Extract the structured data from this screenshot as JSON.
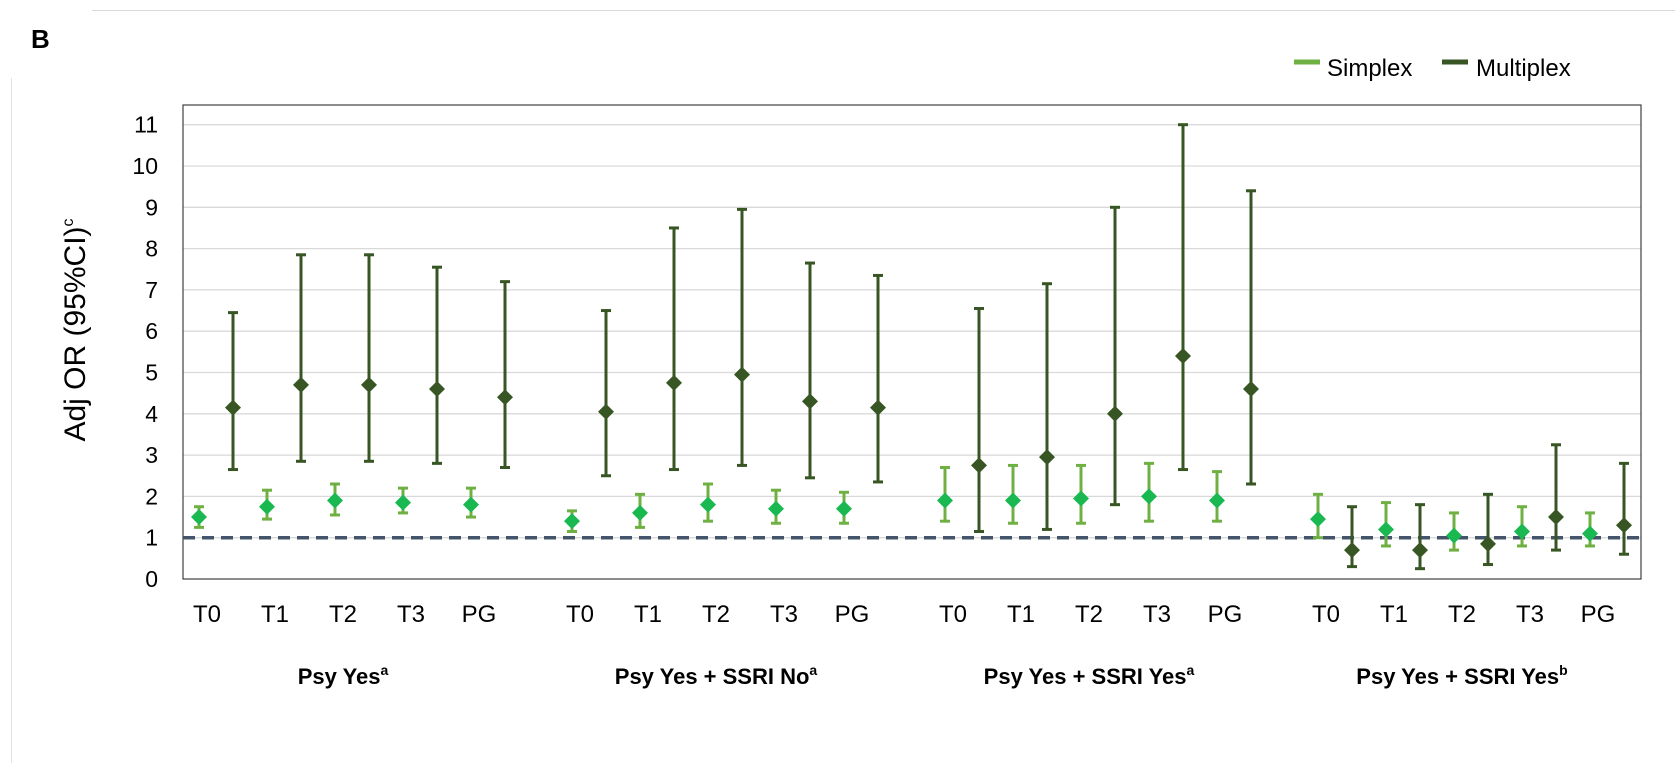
{
  "panel_label": "B",
  "colors": {
    "simplex_bar": "#6fb043",
    "simplex_marker": "#19b850",
    "multiplex": "#375623",
    "reference_line": "#44546a",
    "grid": "#d9d9d9",
    "frame": "#404040"
  },
  "chart_data": {
    "type": "scatter",
    "subtype": "point-with-error-bars",
    "title": "",
    "ylabel": "Adj OR (95%CI)",
    "ylabel_sup": "c",
    "ylim": [
      0,
      11
    ],
    "yticks": [
      0,
      1,
      2,
      3,
      4,
      5,
      6,
      7,
      8,
      9,
      10,
      11
    ],
    "grid": true,
    "reference_line": 1,
    "legend_position": "top-right",
    "groups": [
      {
        "label": "Psy Yes",
        "sup": "a"
      },
      {
        "label": "Psy Yes + SSRI No",
        "sup": "a"
      },
      {
        "label": "Psy Yes + SSRI Yes",
        "sup": "a"
      },
      {
        "label": "Psy Yes + SSRI Yes",
        "sup": "b"
      }
    ],
    "categories": [
      "T0",
      "T1",
      "T2",
      "T3",
      "PG"
    ],
    "series": [
      {
        "name": "Simplex",
        "values": [
          [
            {
              "est": 1.5,
              "lo": 1.25,
              "hi": 1.75
            },
            {
              "est": 1.75,
              "lo": 1.45,
              "hi": 2.15
            },
            {
              "est": 1.9,
              "lo": 1.55,
              "hi": 2.3
            },
            {
              "est": 1.85,
              "lo": 1.6,
              "hi": 2.2
            },
            {
              "est": 1.8,
              "lo": 1.5,
              "hi": 2.2
            }
          ],
          [
            {
              "est": 1.4,
              "lo": 1.15,
              "hi": 1.65
            },
            {
              "est": 1.6,
              "lo": 1.25,
              "hi": 2.05
            },
            {
              "est": 1.8,
              "lo": 1.4,
              "hi": 2.3
            },
            {
              "est": 1.7,
              "lo": 1.35,
              "hi": 2.15
            },
            {
              "est": 1.7,
              "lo": 1.35,
              "hi": 2.1
            }
          ],
          [
            {
              "est": 1.9,
              "lo": 1.4,
              "hi": 2.7
            },
            {
              "est": 1.9,
              "lo": 1.35,
              "hi": 2.75
            },
            {
              "est": 1.95,
              "lo": 1.35,
              "hi": 2.75
            },
            {
              "est": 2.0,
              "lo": 1.4,
              "hi": 2.8
            },
            {
              "est": 1.9,
              "lo": 1.4,
              "hi": 2.6
            }
          ],
          [
            {
              "est": 1.45,
              "lo": 1.0,
              "hi": 2.05
            },
            {
              "est": 1.2,
              "lo": 0.8,
              "hi": 1.85
            },
            {
              "est": 1.05,
              "lo": 0.7,
              "hi": 1.6
            },
            {
              "est": 1.15,
              "lo": 0.8,
              "hi": 1.75
            },
            {
              "est": 1.1,
              "lo": 0.8,
              "hi": 1.6
            }
          ]
        ]
      },
      {
        "name": "Multiplex",
        "values": [
          [
            {
              "est": 4.15,
              "lo": 2.65,
              "hi": 6.45
            },
            {
              "est": 4.7,
              "lo": 2.85,
              "hi": 7.85
            },
            {
              "est": 4.7,
              "lo": 2.85,
              "hi": 7.85
            },
            {
              "est": 4.6,
              "lo": 2.8,
              "hi": 7.55
            },
            {
              "est": 4.4,
              "lo": 2.7,
              "hi": 7.2
            }
          ],
          [
            {
              "est": 4.05,
              "lo": 2.5,
              "hi": 6.5
            },
            {
              "est": 4.75,
              "lo": 2.65,
              "hi": 8.5
            },
            {
              "est": 4.95,
              "lo": 2.75,
              "hi": 8.95
            },
            {
              "est": 4.3,
              "lo": 2.45,
              "hi": 7.65
            },
            {
              "est": 4.15,
              "lo": 2.35,
              "hi": 7.35
            }
          ],
          [
            {
              "est": 2.75,
              "lo": 1.15,
              "hi": 6.55
            },
            {
              "est": 2.95,
              "lo": 1.2,
              "hi": 7.15
            },
            {
              "est": 4.0,
              "lo": 1.8,
              "hi": 9.0
            },
            {
              "est": 5.4,
              "lo": 2.65,
              "hi": 11.0
            },
            {
              "est": 4.6,
              "lo": 2.3,
              "hi": 9.4
            }
          ],
          [
            {
              "est": 0.7,
              "lo": 0.3,
              "hi": 1.75
            },
            {
              "est": 0.7,
              "lo": 0.25,
              "hi": 1.8
            },
            {
              "est": 0.85,
              "lo": 0.35,
              "hi": 2.05
            },
            {
              "est": 1.5,
              "lo": 0.7,
              "hi": 3.25
            },
            {
              "est": 1.3,
              "lo": 0.6,
              "hi": 2.8
            }
          ]
        ]
      }
    ]
  }
}
